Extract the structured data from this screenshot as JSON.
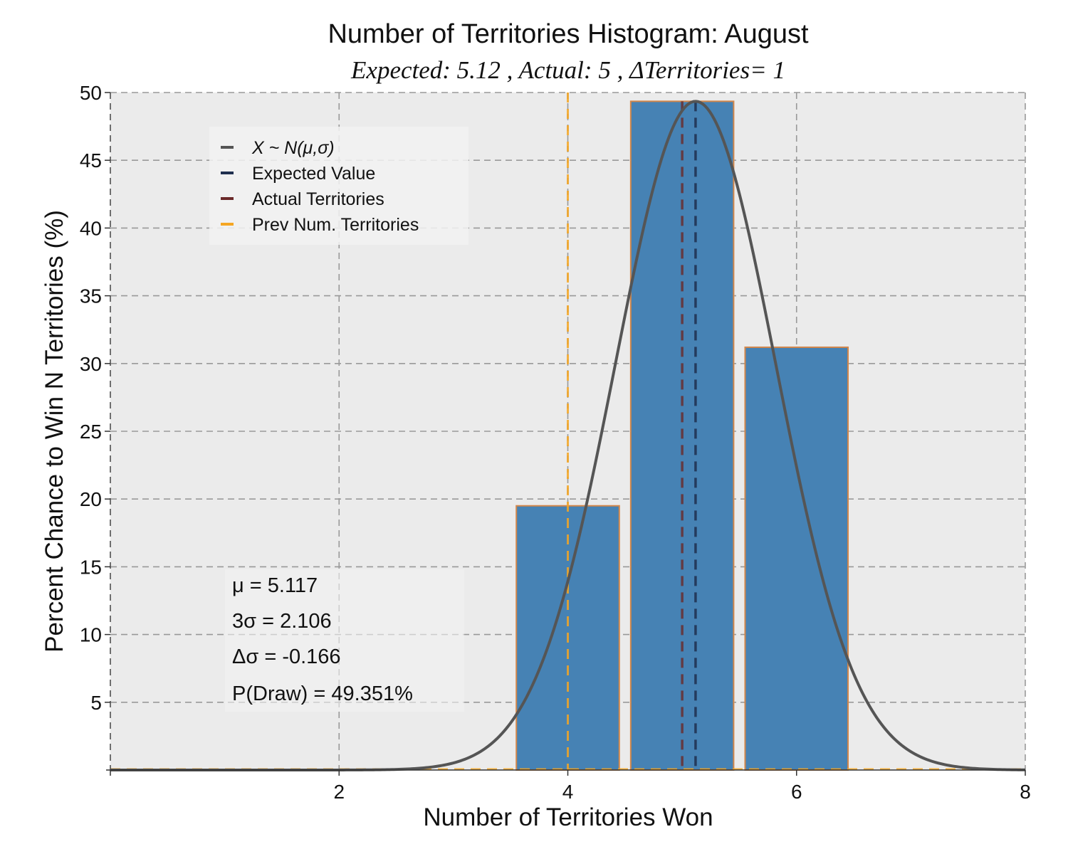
{
  "chart_data": {
    "type": "bar",
    "title": "Number of Territories Histogram: August",
    "subtitle": "Expected: 5.12 , Actual: 5 , ΔTerritories= 1",
    "xlabel": "Number of Territories Won",
    "ylabel": "Percent Chance to Win N Territories (%)",
    "xlim": [
      0,
      8
    ],
    "ylim": [
      0,
      50
    ],
    "xticks": [
      2,
      4,
      6,
      8
    ],
    "yticks": [
      5,
      10,
      15,
      20,
      25,
      30,
      35,
      40,
      45,
      50
    ],
    "grid": true,
    "bars": {
      "x": [
        4,
        5,
        6
      ],
      "values": [
        19.5,
        49.351,
        31.2
      ],
      "width": 0.9,
      "color": "#4682b4",
      "edgecolor": "#d2874b"
    },
    "normal_curve": {
      "mu": 5.117,
      "sigma": 0.702,
      "peak": 49.351,
      "color": "#555555"
    },
    "vlines": [
      {
        "name": "Expected Value",
        "x": 5.117,
        "color": "#1f2f4f"
      },
      {
        "name": "Actual Territories",
        "x": 5,
        "color": "#6b2a2a"
      },
      {
        "name": "Prev Num. Territories",
        "x": 4,
        "color": "#f5a623"
      }
    ],
    "legend": {
      "placement": "upper-left",
      "items": [
        {
          "label": "X ~ N(μ,σ)",
          "color": "#555555"
        },
        {
          "label": "Expected Value",
          "color": "#1f2f4f"
        },
        {
          "label": "Actual Territories",
          "color": "#6b2a2a"
        },
        {
          "label": "Prev Num. Territories",
          "color": "#f5a623"
        }
      ]
    },
    "stats": {
      "mu": "μ = 5.117",
      "three_sigma": "3σ = 2.106",
      "delta_sigma": "Δσ = -0.166",
      "p_draw": "P(Draw) = 49.351%"
    }
  },
  "colors": {
    "plot_background": "#ebebeb",
    "grid": "#999999"
  }
}
